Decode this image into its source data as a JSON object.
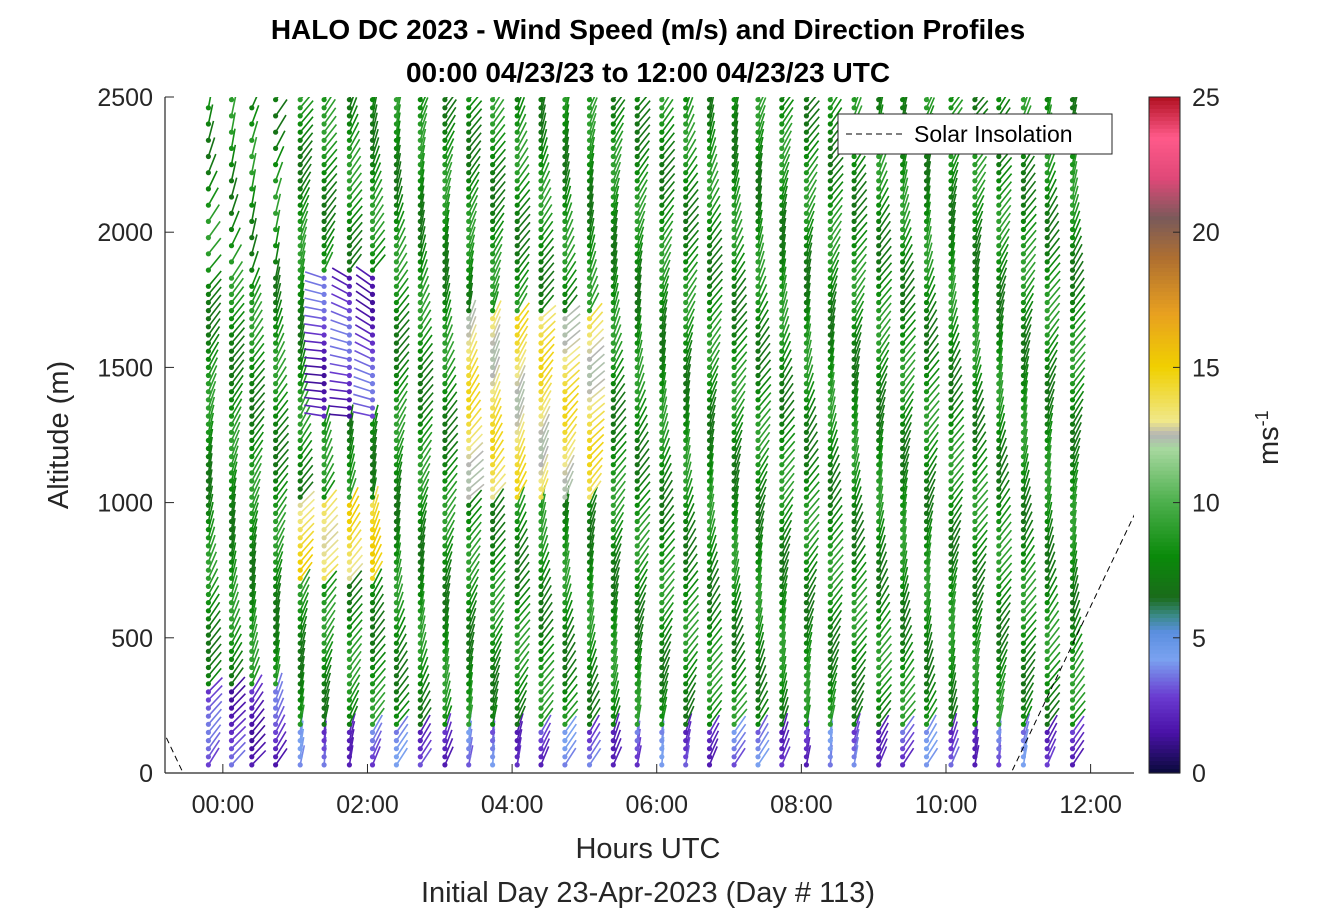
{
  "chart_data": {
    "type": "wind-barb profile",
    "title": "HALO DC 2023 - Wind Speed (m/s) and Direction Profiles",
    "subtitle": "00:00 04/23/23 to 12:00 04/23/23  UTC",
    "xlabel": "Hours UTC",
    "xlabel2": "Initial Day 23-Apr-2023 (Day # 113)",
    "ylabel": "Altitude (m)",
    "xlim_hours": [
      -0.8,
      12.6
    ],
    "ylim": [
      0,
      2500
    ],
    "xticks": [
      {
        "value": 0,
        "label": "00:00"
      },
      {
        "value": 2,
        "label": "02:00"
      },
      {
        "value": 4,
        "label": "04:00"
      },
      {
        "value": 6,
        "label": "06:00"
      },
      {
        "value": 8,
        "label": "08:00"
      },
      {
        "value": 10,
        "label": "10:00"
      },
      {
        "value": 12,
        "label": "12:00"
      }
    ],
    "yticks": [
      {
        "value": 0,
        "label": "0"
      },
      {
        "value": 500,
        "label": "500"
      },
      {
        "value": 1000,
        "label": "1000"
      },
      {
        "value": 1500,
        "label": "1500"
      },
      {
        "value": 2000,
        "label": "2000"
      },
      {
        "value": 2500,
        "label": "2500"
      }
    ],
    "colorbar": {
      "label": "ms",
      "label_superscript": "-1",
      "range": [
        0,
        25
      ],
      "ticks": [
        {
          "value": 0,
          "label": "0"
        },
        {
          "value": 5,
          "label": "5"
        },
        {
          "value": 10,
          "label": "10"
        },
        {
          "value": 15,
          "label": "15"
        },
        {
          "value": 20,
          "label": "20"
        },
        {
          "value": 25,
          "label": "25"
        }
      ],
      "stops": [
        {
          "value": 0,
          "color": "#0a0a3c"
        },
        {
          "value": 1.5,
          "color": "#4a12a8"
        },
        {
          "value": 2.8,
          "color": "#6a3ad0"
        },
        {
          "value": 4.2,
          "color": "#7aa2f0"
        },
        {
          "value": 5.2,
          "color": "#5b8fe0"
        },
        {
          "value": 5.8,
          "color": "#3b8a8a"
        },
        {
          "value": 6.5,
          "color": "#1a6b1a"
        },
        {
          "value": 8,
          "color": "#0a8a0a"
        },
        {
          "value": 10,
          "color": "#4caf4c"
        },
        {
          "value": 12,
          "color": "#a8d8a0"
        },
        {
          "value": 12.5,
          "color": "#b4b4b4"
        },
        {
          "value": 13,
          "color": "#f0e88a"
        },
        {
          "value": 15,
          "color": "#f0d000"
        },
        {
          "value": 17,
          "color": "#e8a020"
        },
        {
          "value": 19,
          "color": "#b07030"
        },
        {
          "value": 20.5,
          "color": "#7a5a5a"
        },
        {
          "value": 22,
          "color": "#e04878"
        },
        {
          "value": 23.5,
          "color": "#ff5a8a"
        },
        {
          "value": 25,
          "color": "#b01020"
        }
      ]
    },
    "legend": {
      "entries": [
        "Solar Insolation"
      ],
      "placement": "top-right",
      "line_style": "dashed"
    },
    "solar_insolation": {
      "x": [
        -0.78,
        -0.55,
        10.9,
        12.65
      ],
      "y": [
        130,
        0,
        0,
        980
      ]
    },
    "profile_times_hours": [
      -0.2,
      0.12,
      0.4,
      0.73,
      1.07,
      1.4,
      1.75,
      2.07,
      2.4,
      2.73,
      3.07,
      3.4,
      3.73,
      4.07,
      4.4,
      4.73,
      5.07,
      5.4,
      5.73,
      6.07,
      6.4,
      6.73,
      7.07,
      7.4,
      7.73,
      8.07,
      8.4,
      8.73,
      9.07,
      9.4,
      9.73,
      10.07,
      10.4,
      10.73,
      11.07,
      11.4,
      11.75
    ],
    "altitude_step_m": 30,
    "speed_regimes": [
      {
        "time_range": [
          -0.2,
          0.8
        ],
        "altitude_range": [
          0,
          300
        ],
        "speed_ms": 2.5,
        "direction_deg": 300
      },
      {
        "time_range": [
          0.9,
          12
        ],
        "altitude_range": [
          0,
          150
        ],
        "speed_ms": 3.0,
        "direction_deg": 290
      },
      {
        "time_range": [
          1.0,
          2.2
        ],
        "altitude_range": [
          700,
          1000
        ],
        "speed_ms": 14,
        "direction_deg": 300
      },
      {
        "time_range": [
          3.2,
          5.2
        ],
        "altitude_range": [
          1000,
          1700
        ],
        "speed_ms": 13.5,
        "direction_deg": 305
      },
      {
        "time_range": [
          1.1,
          2.3
        ],
        "altitude_range": [
          1300,
          1850
        ],
        "speed_ms": 2.5,
        "direction_deg": 200
      },
      {
        "time_range": [
          -0.3,
          12
        ],
        "altitude_range": [
          300,
          2500
        ],
        "speed_ms": 8,
        "direction_deg": 295
      }
    ]
  }
}
